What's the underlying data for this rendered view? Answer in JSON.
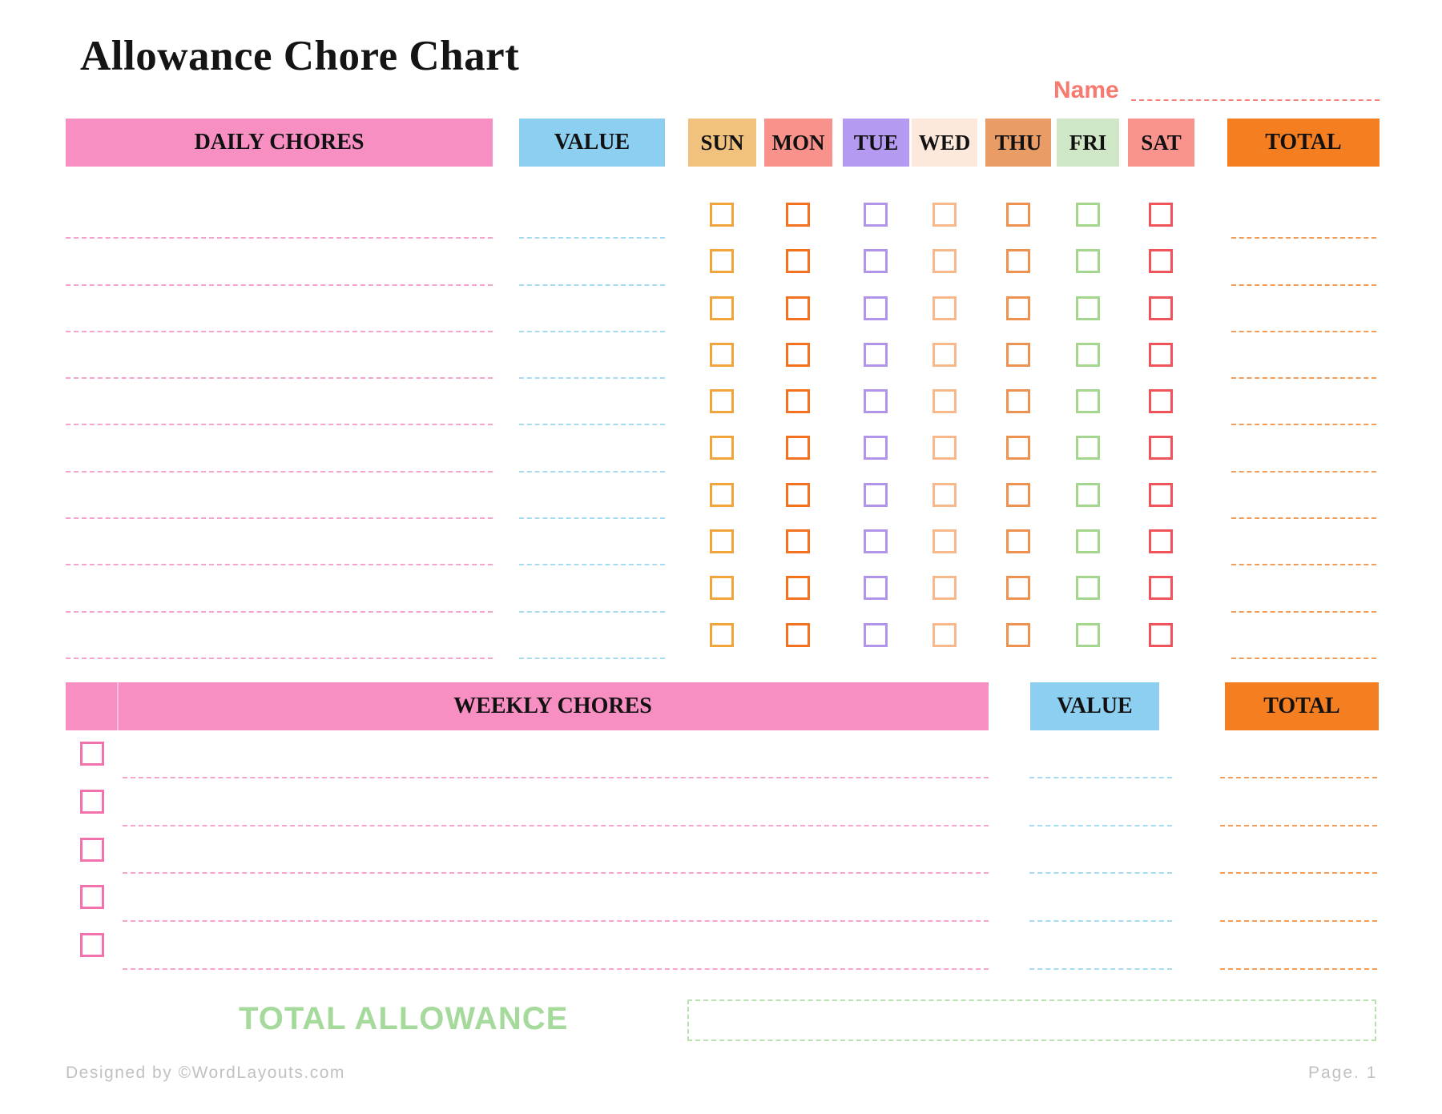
{
  "page": {
    "title": "Allowance Chore Chart",
    "name_label": "Name",
    "total_allowance_label": "TOTAL ALLOWANCE",
    "footer": {
      "left": "Designed by ©WordLayouts.com",
      "right": "Page. 1"
    }
  },
  "daily_table": {
    "headers": {
      "chores": "DAILY CHORES",
      "value": "VALUE",
      "total": "TOTAL"
    },
    "days": [
      {
        "label": "SUN",
        "header_bg": "#F1C27D",
        "checkbox_border": "#F0A43C"
      },
      {
        "label": "MON",
        "header_bg": "#F9928B",
        "checkbox_border": "#F4711E"
      },
      {
        "label": "TUE",
        "header_bg": "#B59AF1",
        "checkbox_border": "#B195EA"
      },
      {
        "label": "WED",
        "header_bg": "#FCE9DC",
        "checkbox_border": "#F7B98C"
      },
      {
        "label": "THU",
        "header_bg": "#E99C66",
        "checkbox_border": "#EE9251"
      },
      {
        "label": "FRI",
        "header_bg": "#CFE7C7",
        "checkbox_border": "#A5D68D"
      },
      {
        "label": "SAT",
        "header_bg": "#F9938D",
        "checkbox_border": "#F0545A"
      }
    ],
    "rows": 10,
    "row_fields": {
      "chore": "",
      "value": "",
      "total": ""
    }
  },
  "weekly_table": {
    "headers": {
      "chores": "WEEKLY CHORES",
      "value": "VALUE",
      "total": "TOTAL"
    },
    "rows": 5,
    "checkbox_border": "#F272AE",
    "row_fields": {
      "chore": "",
      "value": "",
      "total": ""
    }
  },
  "total_allowance_value": "",
  "name_value": "",
  "colors": {
    "pink_band": "#F78FC2",
    "blue_band": "#8DCFF0",
    "orange_band": "#F57E20",
    "pink_line": "#F6A3CD",
    "blue_line": "#A6DBF2",
    "orange_line": "#F49B55",
    "name_accent": "#F8796F",
    "green_text": "#A6DA9C",
    "green_box_border": "#B9E0B0",
    "footer_gray": "#C1C1C1"
  }
}
